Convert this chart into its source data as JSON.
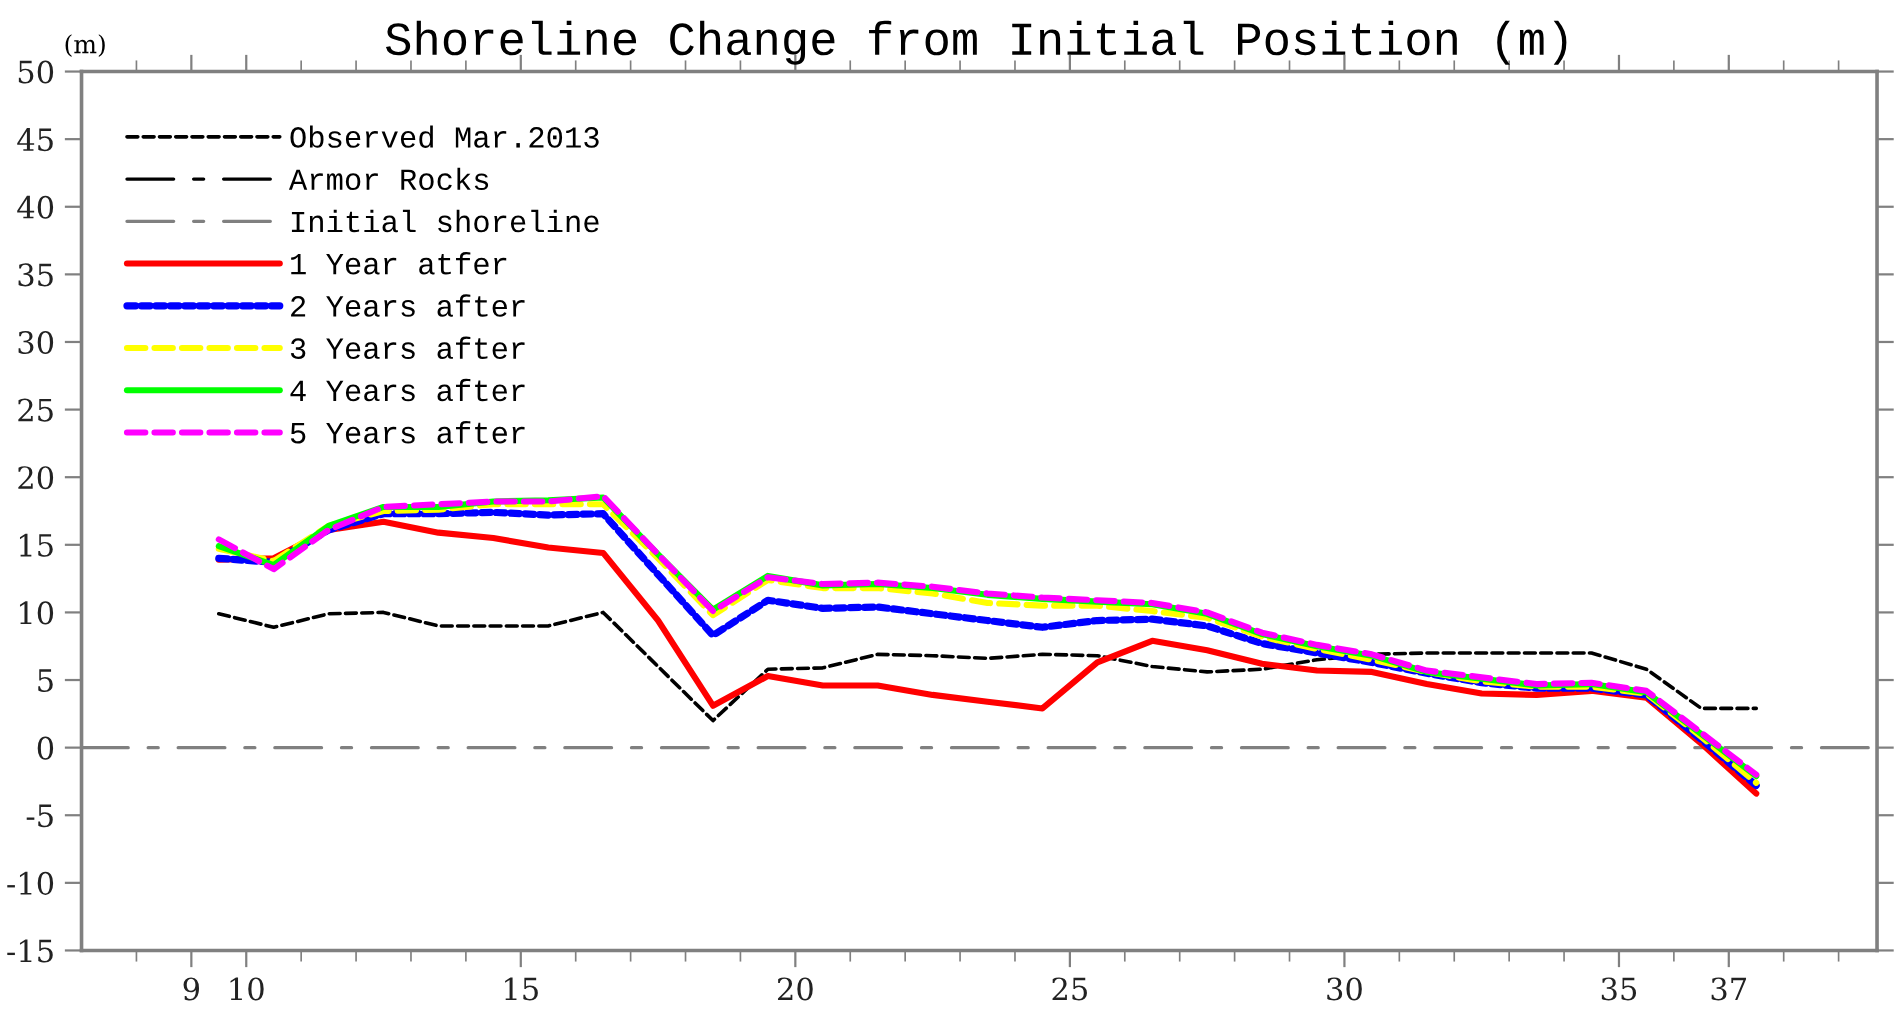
{
  "chart_data": {
    "type": "line",
    "title": "Shoreline Change from Initial Position (m)",
    "ylabel": "(m)",
    "x": [
      9.5,
      10.5,
      11.5,
      12.5,
      13.5,
      14.5,
      15.5,
      16.5,
      17.5,
      18.5,
      19.5,
      20.5,
      21.5,
      22.5,
      23.5,
      24.5,
      25.5,
      26.5,
      27.5,
      28.5,
      29.5,
      30.5,
      31.5,
      32.5,
      33.5,
      34.5,
      35.5,
      36.5,
      37.5
    ],
    "xlim": [
      7,
      39.7
    ],
    "xticks": [
      {
        "value": 8,
        "label": null
      },
      9,
      10,
      {
        "value": 11,
        "label": null
      },
      {
        "value": 12,
        "label": null
      },
      {
        "value": 13,
        "label": null
      },
      {
        "value": 14,
        "label": null
      },
      15,
      {
        "value": 16,
        "label": null
      },
      {
        "value": 17,
        "label": null
      },
      {
        "value": 18,
        "label": null
      },
      {
        "value": 19,
        "label": null
      },
      20,
      {
        "value": 21,
        "label": null
      },
      {
        "value": 22,
        "label": null
      },
      {
        "value": 23,
        "label": null
      },
      {
        "value": 24,
        "label": null
      },
      25,
      {
        "value": 26,
        "label": null
      },
      {
        "value": 27,
        "label": null
      },
      {
        "value": 28,
        "label": null
      },
      {
        "value": 29,
        "label": null
      },
      30,
      {
        "value": 31,
        "label": null
      },
      {
        "value": 32,
        "label": null
      },
      {
        "value": 33,
        "label": null
      },
      {
        "value": 34,
        "label": null
      },
      35,
      {
        "value": 36,
        "label": null
      },
      37,
      {
        "value": 38,
        "label": null
      },
      {
        "value": 39,
        "label": null
      }
    ],
    "ylim": [
      -15,
      50
    ],
    "yticks": [
      -15,
      -10,
      -5,
      0,
      5,
      10,
      15,
      20,
      25,
      30,
      35,
      40,
      45,
      50
    ],
    "grid": false,
    "legend": "top left",
    "marker": "none",
    "series": [
      {
        "name": "Observed Mar.2013",
        "color": "#000000",
        "line_style": "dashed",
        "values": [
          9.9,
          8.9,
          9.9,
          10,
          9,
          9,
          9,
          10,
          6,
          2.0,
          5.8,
          5.9,
          6.9,
          6.8,
          6.6,
          6.9,
          6.8,
          6.0,
          5.6,
          5.8,
          6.5,
          6.9,
          7,
          7,
          7,
          7,
          5.8,
          2.9,
          2.9
        ]
      },
      {
        "name": "Armor Rocks",
        "color": "#000000",
        "line_style": "dashdot",
        "values": [
          null,
          null,
          null,
          null,
          null,
          null,
          null,
          null,
          null,
          null,
          null,
          null,
          null,
          null,
          null,
          null,
          null,
          null,
          null,
          null,
          null,
          null,
          null,
          null,
          null,
          null,
          null,
          null,
          null
        ]
      },
      {
        "name": "Initial shoreline",
        "color": "#808080",
        "line_style": "dashdot",
        "x": [
          7,
          39.7
        ],
        "values": [
          0,
          0
        ]
      },
      {
        "name": "1 Year atfer",
        "color": "#ff0000",
        "line_style": "solid",
        "values": [
          13.9,
          14.0,
          16.1,
          16.7,
          15.9,
          15.5,
          14.8,
          14.4,
          9.4,
          3.1,
          5.3,
          4.6,
          4.6,
          3.9,
          3.4,
          2.9,
          6.3,
          7.9,
          7.2,
          6.2,
          5.7,
          5.6,
          4.7,
          4.0,
          3.9,
          4.2,
          3.7,
          0.3,
          -3.4
        ]
      },
      {
        "name": "2 Years after",
        "color": "#0000ff",
        "line_style": "dotted",
        "values": [
          14.0,
          13.7,
          16.1,
          17.3,
          17.3,
          17.4,
          17.2,
          17.3,
          12.8,
          8.3,
          10.9,
          10.3,
          10.4,
          9.9,
          9.4,
          8.9,
          9.4,
          9.5,
          9.0,
          7.7,
          7.0,
          6.3,
          5.5,
          4.8,
          4.4,
          4.4,
          3.9,
          0.6,
          -2.8
        ]
      },
      {
        "name": "3 Years after",
        "color": "#ffff00",
        "line_style": "dashed",
        "values": [
          14.7,
          13.8,
          16.4,
          17.5,
          17.6,
          18.0,
          18.0,
          18.0,
          14.0,
          9.8,
          12.4,
          11.8,
          11.8,
          11.4,
          10.7,
          10.5,
          10.5,
          10.1,
          9.6,
          8.2,
          7.3,
          6.5,
          5.6,
          4.9,
          4.5,
          4.5,
          4.0,
          0.8,
          -2.6
        ]
      },
      {
        "name": "4 Years after",
        "color": "#00ff00",
        "line_style": "solid",
        "values": [
          14.9,
          13.5,
          16.4,
          17.8,
          17.8,
          18.2,
          18.3,
          18.5,
          14.3,
          10.2,
          12.7,
          12.0,
          12.1,
          11.8,
          11.3,
          11.0,
          10.8,
          10.6,
          9.9,
          8.4,
          7.5,
          6.8,
          5.6,
          5.1,
          4.6,
          4.7,
          4.1,
          1.0,
          -2.1
        ]
      },
      {
        "name": "5 Years after",
        "color": "#ff00ff",
        "line_style": "dashed",
        "values": [
          15.4,
          13.2,
          16.1,
          17.8,
          18.0,
          18.2,
          18.2,
          18.6,
          14.3,
          10.1,
          12.6,
          12.1,
          12.2,
          11.9,
          11.4,
          11.1,
          10.9,
          10.7,
          10.0,
          8.5,
          7.6,
          6.9,
          5.7,
          5.2,
          4.7,
          4.8,
          4.2,
          1.1,
          -2.0
        ]
      }
    ]
  }
}
